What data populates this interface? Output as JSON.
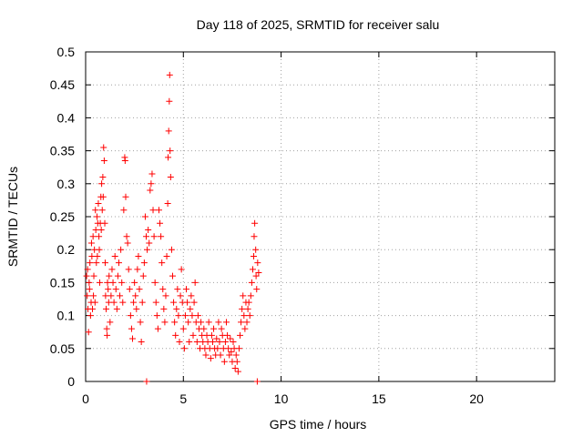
{
  "chart_data": {
    "type": "scatter",
    "title": "Day 118 of 2025, SRMTID for receiver salu",
    "xlabel": "GPS time / hours",
    "ylabel": "SRMTID / TECUs",
    "xlim": [
      0,
      24
    ],
    "ylim": [
      0,
      0.5
    ],
    "x_ticks": [
      0,
      5,
      10,
      15,
      20
    ],
    "x_tick_labels": [
      "0",
      "5",
      "10",
      "15",
      "20"
    ],
    "y_ticks": [
      0,
      0.05,
      0.1,
      0.15,
      0.2,
      0.25,
      0.3,
      0.35,
      0.4,
      0.45,
      0.5
    ],
    "y_tick_labels": [
      "0",
      "0.05",
      "0.1",
      "0.15",
      "0.2",
      "0.25",
      "0.3",
      "0.35",
      "0.4",
      "0.45",
      "0.5"
    ],
    "grid": true,
    "marker": "+",
    "marker_color": "#ff0000",
    "series": [
      {
        "name": "SRMTID",
        "points": [
          [
            0.05,
            0.16
          ],
          [
            0.08,
            0.13
          ],
          [
            0.1,
            0.17
          ],
          [
            0.12,
            0.11
          ],
          [
            0.15,
            0.075
          ],
          [
            0.18,
            0.15
          ],
          [
            0.2,
            0.14
          ],
          [
            0.22,
            0.18
          ],
          [
            0.25,
            0.1
          ],
          [
            0.28,
            0.12
          ],
          [
            0.3,
            0.21
          ],
          [
            0.32,
            0.19
          ],
          [
            0.35,
            0.11
          ],
          [
            0.38,
            0.22
          ],
          [
            0.4,
            0.13
          ],
          [
            0.42,
            0.16
          ],
          [
            0.45,
            0.2
          ],
          [
            0.48,
            0.12
          ],
          [
            0.5,
            0.26
          ],
          [
            0.52,
            0.23
          ],
          [
            0.55,
            0.18
          ],
          [
            0.58,
            0.25
          ],
          [
            0.6,
            0.19
          ],
          [
            0.62,
            0.24
          ],
          [
            0.65,
            0.27
          ],
          [
            0.68,
            0.22
          ],
          [
            0.7,
            0.2
          ],
          [
            0.72,
            0.15
          ],
          [
            0.75,
            0.24
          ],
          [
            0.78,
            0.28
          ],
          [
            0.8,
            0.23
          ],
          [
            0.82,
            0.3
          ],
          [
            0.85,
            0.26
          ],
          [
            0.88,
            0.31
          ],
          [
            0.9,
            0.28
          ],
          [
            0.92,
            0.355
          ],
          [
            0.95,
            0.335
          ],
          [
            0.98,
            0.24
          ],
          [
            1.0,
            0.18
          ],
          [
            1.02,
            0.13
          ],
          [
            1.05,
            0.11
          ],
          [
            1.08,
            0.08
          ],
          [
            1.1,
            0.07
          ],
          [
            1.12,
            0.15
          ],
          [
            1.15,
            0.14
          ],
          [
            1.18,
            0.12
          ],
          [
            1.2,
            0.16
          ],
          [
            1.25,
            0.09
          ],
          [
            1.3,
            0.13
          ],
          [
            1.35,
            0.17
          ],
          [
            1.4,
            0.15
          ],
          [
            1.45,
            0.12
          ],
          [
            1.5,
            0.19
          ],
          [
            1.55,
            0.14
          ],
          [
            1.6,
            0.11
          ],
          [
            1.65,
            0.16
          ],
          [
            1.7,
            0.18
          ],
          [
            1.75,
            0.13
          ],
          [
            1.8,
            0.2
          ],
          [
            1.85,
            0.15
          ],
          [
            1.9,
            0.12
          ],
          [
            1.95,
            0.26
          ],
          [
            2.0,
            0.34
          ],
          [
            2.02,
            0.335
          ],
          [
            2.05,
            0.28
          ],
          [
            2.1,
            0.22
          ],
          [
            2.15,
            0.21
          ],
          [
            2.2,
            0.17
          ],
          [
            2.25,
            0.14
          ],
          [
            2.3,
            0.1
          ],
          [
            2.35,
            0.08
          ],
          [
            2.4,
            0.065
          ],
          [
            2.45,
            0.12
          ],
          [
            2.5,
            0.15
          ],
          [
            2.55,
            0.13
          ],
          [
            2.6,
            0.11
          ],
          [
            2.65,
            0.17
          ],
          [
            2.7,
            0.19
          ],
          [
            2.75,
            0.14
          ],
          [
            2.8,
            0.09
          ],
          [
            2.85,
            0.06
          ],
          [
            2.9,
            0.12
          ],
          [
            2.95,
            0.16
          ],
          [
            3.0,
            0.18
          ],
          [
            3.05,
            0.25
          ],
          [
            3.1,
            0.22
          ],
          [
            3.12,
            0.0
          ],
          [
            3.15,
            0.2
          ],
          [
            3.2,
            0.23
          ],
          [
            3.25,
            0.21
          ],
          [
            3.3,
            0.29
          ],
          [
            3.35,
            0.3
          ],
          [
            3.4,
            0.315
          ],
          [
            3.45,
            0.26
          ],
          [
            3.5,
            0.22
          ],
          [
            3.55,
            0.15
          ],
          [
            3.6,
            0.12
          ],
          [
            3.65,
            0.1
          ],
          [
            3.7,
            0.08
          ],
          [
            3.75,
            0.26
          ],
          [
            3.8,
            0.24
          ],
          [
            3.85,
            0.22
          ],
          [
            3.9,
            0.18
          ],
          [
            3.95,
            0.14
          ],
          [
            4.0,
            0.11
          ],
          [
            4.05,
            0.09
          ],
          [
            4.1,
            0.13
          ],
          [
            4.15,
            0.19
          ],
          [
            4.2,
            0.27
          ],
          [
            4.22,
            0.34
          ],
          [
            4.25,
            0.38
          ],
          [
            4.28,
            0.425
          ],
          [
            4.3,
            0.465
          ],
          [
            4.32,
            0.35
          ],
          [
            4.35,
            0.31
          ],
          [
            4.4,
            0.2
          ],
          [
            4.45,
            0.16
          ],
          [
            4.5,
            0.12
          ],
          [
            4.55,
            0.09
          ],
          [
            4.6,
            0.07
          ],
          [
            4.65,
            0.11
          ],
          [
            4.7,
            0.14
          ],
          [
            4.75,
            0.1
          ],
          [
            4.8,
            0.06
          ],
          [
            4.85,
            0.13
          ],
          [
            4.9,
            0.17
          ],
          [
            4.95,
            0.12
          ],
          [
            5.0,
            0.08
          ],
          [
            5.05,
            0.05
          ],
          [
            5.1,
            0.1
          ],
          [
            5.15,
            0.14
          ],
          [
            5.2,
            0.12
          ],
          [
            5.25,
            0.09
          ],
          [
            5.3,
            0.06
          ],
          [
            5.35,
            0.11
          ],
          [
            5.4,
            0.13
          ],
          [
            5.45,
            0.1
          ],
          [
            5.5,
            0.07
          ],
          [
            5.55,
            0.12
          ],
          [
            5.6,
            0.15
          ],
          [
            5.65,
            0.09
          ],
          [
            5.7,
            0.06
          ],
          [
            5.75,
            0.1
          ],
          [
            5.8,
            0.08
          ],
          [
            5.85,
            0.05
          ],
          [
            5.9,
            0.09
          ],
          [
            5.95,
            0.07
          ],
          [
            6.0,
            0.06
          ],
          [
            6.05,
            0.08
          ],
          [
            6.1,
            0.05
          ],
          [
            6.15,
            0.04
          ],
          [
            6.2,
            0.07
          ],
          [
            6.25,
            0.06
          ],
          [
            6.3,
            0.09
          ],
          [
            6.35,
            0.05
          ],
          [
            6.4,
            0.035
          ],
          [
            6.45,
            0.07
          ],
          [
            6.5,
            0.06
          ],
          [
            6.55,
            0.08
          ],
          [
            6.6,
            0.05
          ],
          [
            6.65,
            0.04
          ],
          [
            6.7,
            0.065
          ],
          [
            6.75,
            0.05
          ],
          [
            6.8,
            0.09
          ],
          [
            6.85,
            0.06
          ],
          [
            6.9,
            0.04
          ],
          [
            6.95,
            0.08
          ],
          [
            7.0,
            0.07
          ],
          [
            7.05,
            0.05
          ],
          [
            7.1,
            0.03
          ],
          [
            7.15,
            0.06
          ],
          [
            7.2,
            0.09
          ],
          [
            7.25,
            0.07
          ],
          [
            7.3,
            0.05
          ],
          [
            7.35,
            0.04
          ],
          [
            7.4,
            0.065
          ],
          [
            7.45,
            0.045
          ],
          [
            7.5,
            0.03
          ],
          [
            7.55,
            0.06
          ],
          [
            7.6,
            0.05
          ],
          [
            7.65,
            0.02
          ],
          [
            7.7,
            0.04
          ],
          [
            7.75,
            0.03
          ],
          [
            7.8,
            0.015
          ],
          [
            7.85,
            0.05
          ],
          [
            7.9,
            0.07
          ],
          [
            7.95,
            0.09
          ],
          [
            8.0,
            0.11
          ],
          [
            8.05,
            0.13
          ],
          [
            8.1,
            0.1
          ],
          [
            8.15,
            0.08
          ],
          [
            8.2,
            0.12
          ],
          [
            8.25,
            0.09
          ],
          [
            8.3,
            0.11
          ],
          [
            8.35,
            0.12
          ],
          [
            8.4,
            0.1
          ],
          [
            8.45,
            0.13
          ],
          [
            8.5,
            0.15
          ],
          [
            8.55,
            0.17
          ],
          [
            8.6,
            0.19
          ],
          [
            8.62,
            0.22
          ],
          [
            8.65,
            0.24
          ],
          [
            8.7,
            0.2
          ],
          [
            8.72,
            0.16
          ],
          [
            8.75,
            0.14
          ],
          [
            8.78,
            0.0
          ],
          [
            8.8,
            0.18
          ],
          [
            8.85,
            0.165
          ]
        ]
      }
    ]
  }
}
